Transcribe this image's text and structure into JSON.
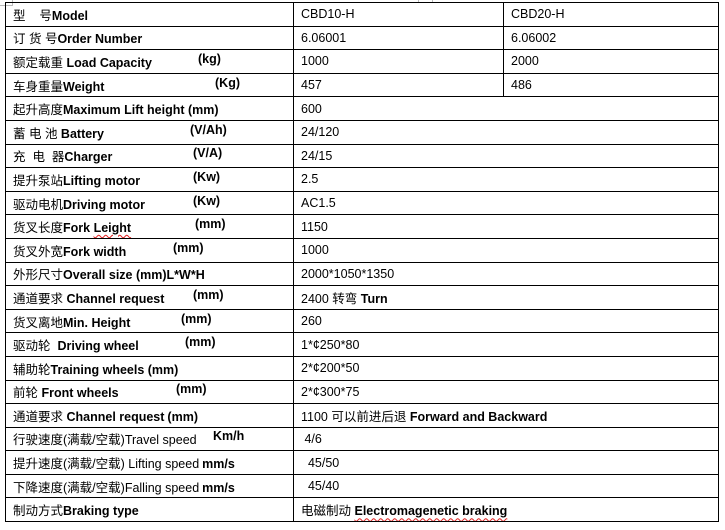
{
  "rows": [
    {
      "cn": "型    号",
      "en": "Model",
      "unit": "",
      "v1": "CBD10-H",
      "v2": "CBD20-H"
    },
    {
      "cn": "订 货 号",
      "en": "Order Number",
      "unit": "",
      "v1": "6.06001",
      "v2": "6.06002"
    },
    {
      "cn": "额定载重 ",
      "en": "Load Capacity",
      "unit": "(kg)",
      "v1": "1000",
      "v2": "2000"
    },
    {
      "cn": "车身重量",
      "en": "Weight",
      "unit": "(Kg)",
      "v1": "457",
      "v2": "486"
    },
    {
      "cn": "起升高度",
      "en": "Maximum Lift height (mm)",
      "unit": "",
      "v": "600"
    },
    {
      "cn": "蓄 电 池 ",
      "en": "Battery",
      "unit": "(V/Ah)",
      "v": "24/120"
    },
    {
      "cn": "充  电  器",
      "en": "Charger",
      "unit": "(V/A)",
      "v": "24/15"
    },
    {
      "cn": "提升泵站",
      "en": "Lifting motor",
      "unit": "(Kw)",
      "v": "2.5"
    },
    {
      "cn": "驱动电机",
      "en": "Driving motor",
      "unit": "(Kw)",
      "v": "AC1.5"
    },
    {
      "cn": "货叉长度",
      "en": "Fork Leight",
      "unit": "(mm)",
      "v": "1150"
    },
    {
      "cn": "货叉外宽",
      "en": "Fork width",
      "unit": "(mm)",
      "v": "1000"
    },
    {
      "cn": "外形尺寸",
      "en": "Overall size (mm)L*W*H",
      "unit": "",
      "v": "2000*1050*1350"
    },
    {
      "cn": "通道要求 ",
      "en": "Channel request",
      "unit": "(mm)",
      "v": "2400 转弯 ",
      "vb": "Turn"
    },
    {
      "cn": "货叉离地",
      "en": "Min. Height",
      "unit": "(mm)",
      "v": "260"
    },
    {
      "cn": "驱动轮  ",
      "en": "Driving wheel",
      "unit": "(mm)",
      "v": "1*¢250*80"
    },
    {
      "cn": "辅助轮",
      "en": "Training wheels (mm)",
      "unit": "",
      "v": "2*¢200*50"
    },
    {
      "cn": "前轮 ",
      "en": "Front wheels",
      "unit": "(mm)",
      "v": "2*¢300*75"
    },
    {
      "cn": "通道要求 ",
      "en": "Channel request",
      "unit": "(mm)",
      "v": "1100 可以前进后退 ",
      "vb": "Forward and Backward"
    },
    {
      "cn": "行驶速度(满载/空载)",
      "en": "Travel speed",
      "unit": "Km/h",
      "light": true,
      "v": " 4/6"
    },
    {
      "cn": "提升速度(满载/空载) ",
      "en": "Lifting speed",
      "unit": "mm/s",
      "light": true,
      "v": "  45/50"
    },
    {
      "cn": "下降速度(满载/空载)",
      "en": "Falling speed",
      "unit": "mm/s",
      "light": true,
      "v": "  45/40"
    },
    {
      "cn": "制动方式",
      "en": "Braking type",
      "unit": "",
      "v": "电磁制动 ",
      "vb": "Electromagenetic braking",
      "vb_underline": true
    }
  ]
}
